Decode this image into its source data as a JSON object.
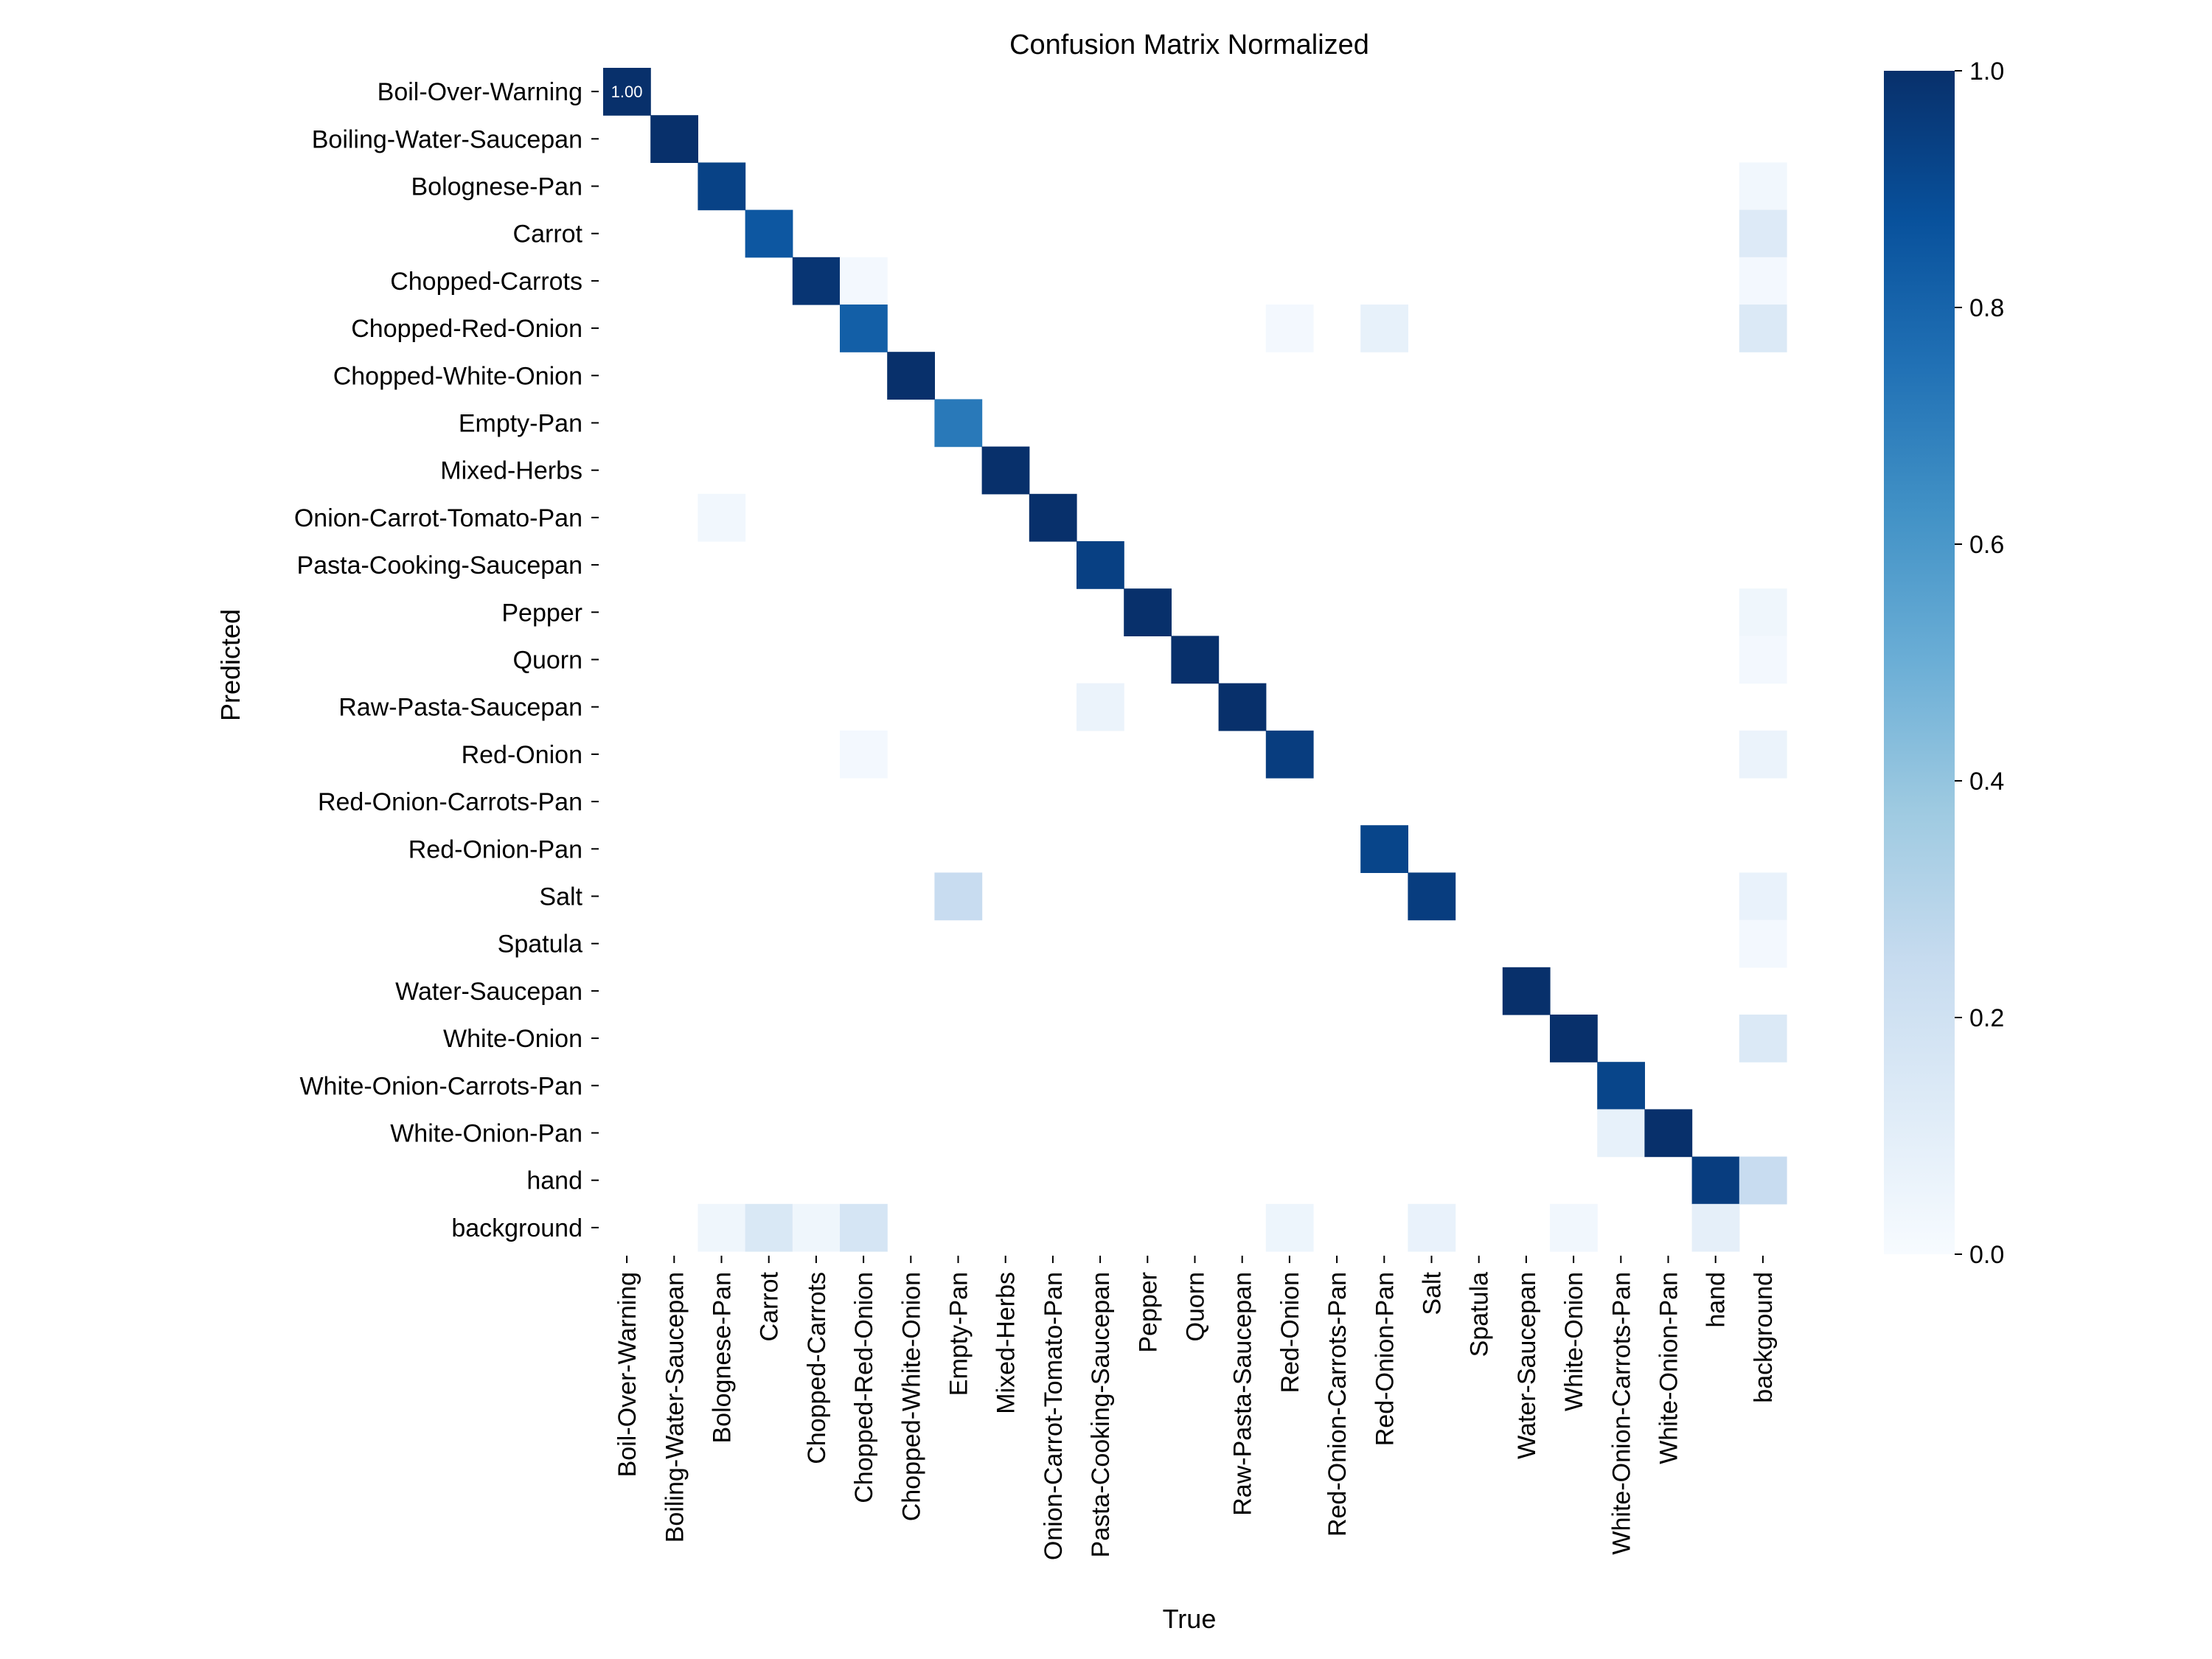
{
  "chart_data": {
    "type": "heatmap",
    "title": "Confusion Matrix Normalized",
    "xlabel": "True",
    "ylabel": "Predicted",
    "rows": [
      "Boil-Over-Warning",
      "Boiling-Water-Saucepan",
      "Bolognese-Pan",
      "Carrot",
      "Chopped-Carrots",
      "Chopped-Red-Onion",
      "Chopped-White-Onion",
      "Empty-Pan",
      "Mixed-Herbs",
      "Onion-Carrot-Tomato-Pan",
      "Pasta-Cooking-Saucepan",
      "Pepper",
      "Quorn",
      "Raw-Pasta-Saucepan",
      "Red-Onion",
      "Red-Onion-Carrots-Pan",
      "Red-Onion-Pan",
      "Salt",
      "Spatula",
      "Water-Saucepan",
      "White-Onion",
      "White-Onion-Carrots-Pan",
      "White-Onion-Pan",
      "hand",
      "background"
    ],
    "columns": [
      "Boil-Over-Warning",
      "Boiling-Water-Saucepan",
      "Bolognese-Pan",
      "Carrot",
      "Chopped-Carrots",
      "Chopped-Red-Onion",
      "Chopped-White-Onion",
      "Empty-Pan",
      "Mixed-Herbs",
      "Onion-Carrot-Tomato-Pan",
      "Pasta-Cooking-Saucepan",
      "Pepper",
      "Quorn",
      "Raw-Pasta-Saucepan",
      "Red-Onion",
      "Red-Onion-Carrots-Pan",
      "Red-Onion-Pan",
      "Salt",
      "Spatula",
      "Water-Saucepan",
      "White-Onion",
      "White-Onion-Carrots-Pan",
      "White-Onion-Pan",
      "hand",
      "background"
    ],
    "cells": [
      {
        "row": "Boil-Over-Warning",
        "col": "Boil-Over-Warning",
        "value": 1.0,
        "label": "1.00"
      },
      {
        "row": "Boiling-Water-Saucepan",
        "col": "Boiling-Water-Saucepan",
        "value": 1.0
      },
      {
        "row": "Bolognese-Pan",
        "col": "Bolognese-Pan",
        "value": 0.93
      },
      {
        "row": "Bolognese-Pan",
        "col": "background",
        "value": 0.03
      },
      {
        "row": "Carrot",
        "col": "Carrot",
        "value": 0.85
      },
      {
        "row": "Carrot",
        "col": "background",
        "value": 0.13
      },
      {
        "row": "Chopped-Carrots",
        "col": "Chopped-Carrots",
        "value": 0.98
      },
      {
        "row": "Chopped-Carrots",
        "col": "Chopped-Red-Onion",
        "value": 0.02
      },
      {
        "row": "Chopped-Carrots",
        "col": "background",
        "value": 0.02
      },
      {
        "row": "Chopped-Red-Onion",
        "col": "Chopped-Red-Onion",
        "value": 0.82
      },
      {
        "row": "Chopped-Red-Onion",
        "col": "Red-Onion",
        "value": 0.02
      },
      {
        "row": "Chopped-Red-Onion",
        "col": "Red-Onion-Pan",
        "value": 0.08
      },
      {
        "row": "Chopped-Red-Onion",
        "col": "background",
        "value": 0.14
      },
      {
        "row": "Chopped-White-Onion",
        "col": "Chopped-White-Onion",
        "value": 1.0
      },
      {
        "row": "Empty-Pan",
        "col": "Empty-Pan",
        "value": 0.72
      },
      {
        "row": "Mixed-Herbs",
        "col": "Mixed-Herbs",
        "value": 1.0
      },
      {
        "row": "Onion-Carrot-Tomato-Pan",
        "col": "Bolognese-Pan",
        "value": 0.03
      },
      {
        "row": "Onion-Carrot-Tomato-Pan",
        "col": "Onion-Carrot-Tomato-Pan",
        "value": 1.0
      },
      {
        "row": "Pasta-Cooking-Saucepan",
        "col": "Pasta-Cooking-Saucepan",
        "value": 0.94
      },
      {
        "row": "Pepper",
        "col": "Pepper",
        "value": 1.0
      },
      {
        "row": "Pepper",
        "col": "background",
        "value": 0.04
      },
      {
        "row": "Quorn",
        "col": "Quorn",
        "value": 1.0
      },
      {
        "row": "Quorn",
        "col": "background",
        "value": 0.02
      },
      {
        "row": "Raw-Pasta-Saucepan",
        "col": "Pasta-Cooking-Saucepan",
        "value": 0.06
      },
      {
        "row": "Raw-Pasta-Saucepan",
        "col": "Raw-Pasta-Saucepan",
        "value": 1.0
      },
      {
        "row": "Red-Onion",
        "col": "Chopped-Red-Onion",
        "value": 0.02
      },
      {
        "row": "Red-Onion",
        "col": "Red-Onion",
        "value": 0.95
      },
      {
        "row": "Red-Onion",
        "col": "background",
        "value": 0.06
      },
      {
        "row": "Red-Onion-Pan",
        "col": "Red-Onion-Pan",
        "value": 0.92
      },
      {
        "row": "Salt",
        "col": "Empty-Pan",
        "value": 0.24
      },
      {
        "row": "Salt",
        "col": "Salt",
        "value": 0.95
      },
      {
        "row": "Salt",
        "col": "background",
        "value": 0.07
      },
      {
        "row": "Spatula",
        "col": "background",
        "value": 0.02
      },
      {
        "row": "Water-Saucepan",
        "col": "Water-Saucepan",
        "value": 1.0
      },
      {
        "row": "White-Onion",
        "col": "White-Onion",
        "value": 1.0
      },
      {
        "row": "White-Onion",
        "col": "background",
        "value": 0.14
      },
      {
        "row": "White-Onion-Carrots-Pan",
        "col": "White-Onion-Carrots-Pan",
        "value": 0.92
      },
      {
        "row": "White-Onion-Pan",
        "col": "White-Onion-Carrots-Pan",
        "value": 0.08
      },
      {
        "row": "White-Onion-Pan",
        "col": "White-Onion-Pan",
        "value": 1.0
      },
      {
        "row": "hand",
        "col": "hand",
        "value": 0.95
      },
      {
        "row": "hand",
        "col": "background",
        "value": 0.24
      },
      {
        "row": "background",
        "col": "Bolognese-Pan",
        "value": 0.04
      },
      {
        "row": "background",
        "col": "Carrot",
        "value": 0.15
      },
      {
        "row": "background",
        "col": "Chopped-Carrots",
        "value": 0.04
      },
      {
        "row": "background",
        "col": "Chopped-Red-Onion",
        "value": 0.17
      },
      {
        "row": "background",
        "col": "Red-Onion",
        "value": 0.05
      },
      {
        "row": "background",
        "col": "Salt",
        "value": 0.07
      },
      {
        "row": "background",
        "col": "White-Onion",
        "value": 0.03
      },
      {
        "row": "background",
        "col": "hand",
        "value": 0.09
      }
    ],
    "colorbar": {
      "min": 0.0,
      "max": 1.0,
      "ticks": [
        "0.0",
        "0.2",
        "0.4",
        "0.6",
        "0.8",
        "1.0"
      ],
      "colormap": [
        "#f7fbff",
        "#deebf7",
        "#c6dbef",
        "#9ecae1",
        "#6baed6",
        "#4292c6",
        "#2171b5",
        "#08519c",
        "#08306b"
      ]
    },
    "grid": false
  }
}
